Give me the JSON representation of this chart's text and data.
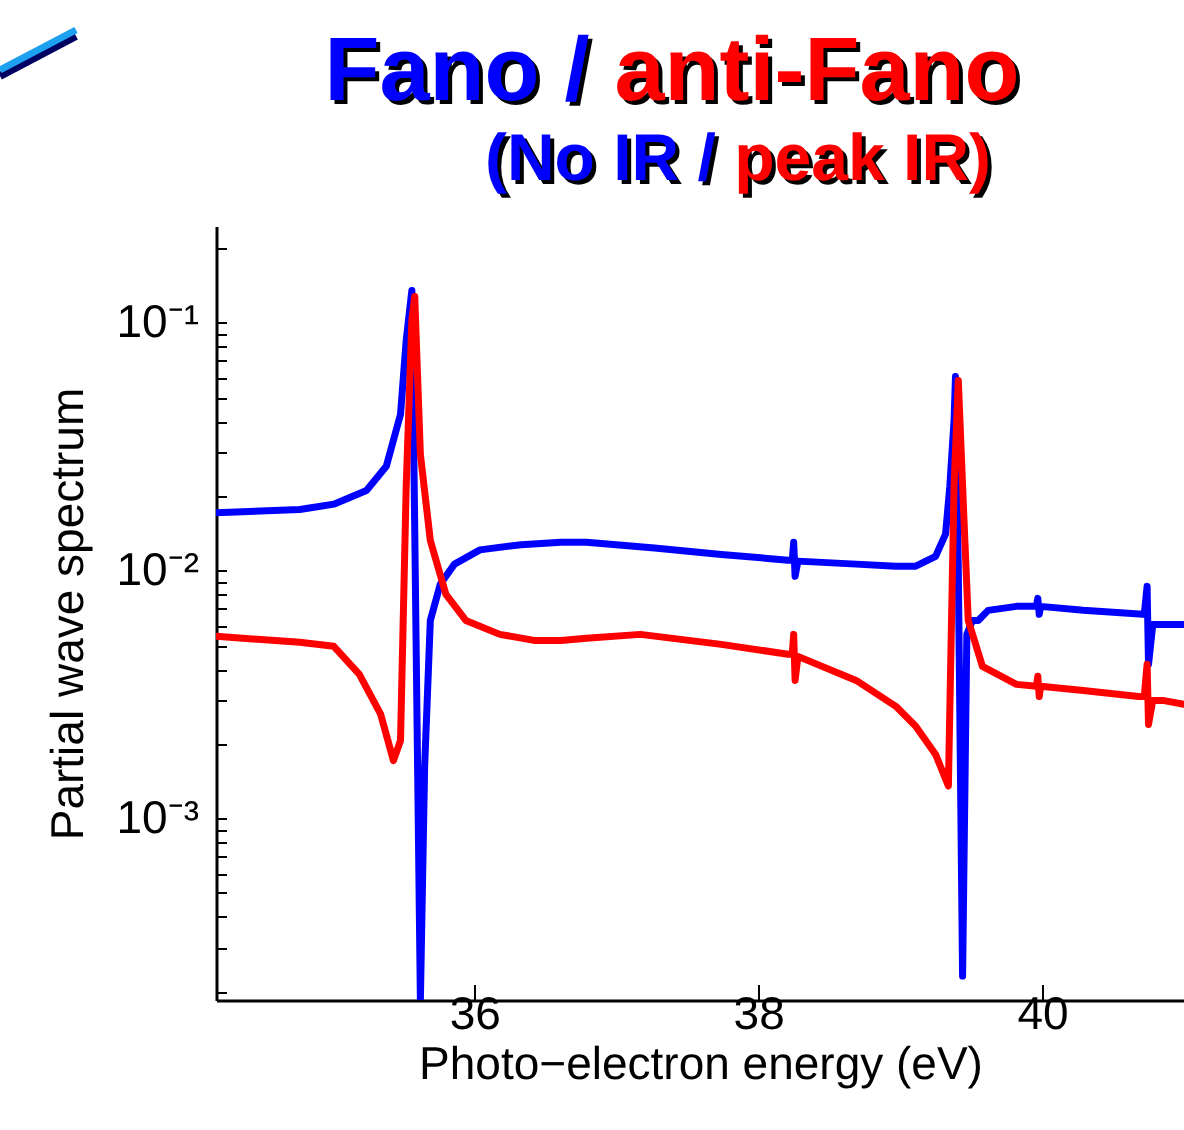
{
  "chart_data": {
    "type": "line",
    "title": "Fano / anti-Fano",
    "subtitle": "(No IR / peak IR)",
    "xlabel": "Photo−electron energy (eV)",
    "ylabel": "Partial wave spectrum",
    "log": "y",
    "grid": false,
    "marker": "none",
    "line_style": "solid",
    "xlim": [
      34.18,
      41.0
    ],
    "xticks": [
      36,
      38,
      40
    ],
    "ylim": [
      0.000185,
      0.245
    ],
    "yticks": [
      {
        "value": 0.0002,
        "label": null
      },
      {
        "value": 0.0003,
        "label": null
      },
      {
        "value": 0.0004,
        "label": null
      },
      {
        "value": 0.0005,
        "label": null
      },
      {
        "value": 0.0006,
        "label": null
      },
      {
        "value": 0.0007,
        "label": null
      },
      {
        "value": 0.0008,
        "label": null
      },
      {
        "value": 0.0009,
        "label": null
      },
      {
        "value": 0.001,
        "label": "10⁻³"
      },
      {
        "value": 0.002,
        "label": null
      },
      {
        "value": 0.003,
        "label": null
      },
      {
        "value": 0.004,
        "label": null
      },
      {
        "value": 0.005,
        "label": null
      },
      {
        "value": 0.006,
        "label": null
      },
      {
        "value": 0.007,
        "label": null
      },
      {
        "value": 0.008,
        "label": null
      },
      {
        "value": 0.009,
        "label": null
      },
      {
        "value": 0.01,
        "label": "10⁻²"
      },
      {
        "value": 0.02,
        "label": null
      },
      {
        "value": 0.03,
        "label": null
      },
      {
        "value": 0.04,
        "label": null
      },
      {
        "value": 0.05,
        "label": null
      },
      {
        "value": 0.06,
        "label": null
      },
      {
        "value": 0.07,
        "label": null
      },
      {
        "value": 0.08,
        "label": null
      },
      {
        "value": 0.09,
        "label": null
      },
      {
        "value": 0.1,
        "label": "10⁻¹"
      },
      {
        "value": 0.2,
        "label": null
      }
    ],
    "series": [
      {
        "color": "#0000ff",
        "x": [
          34.18,
          34.77,
          35.01,
          35.24,
          35.38,
          35.48,
          35.52,
          35.56,
          35.59,
          35.62,
          35.65,
          35.69,
          35.76,
          35.86,
          36.04,
          36.33,
          36.61,
          36.79,
          37.27,
          37.74,
          38.21,
          38.24,
          38.25,
          38.26,
          38.28,
          38.69,
          38.97,
          39.11,
          39.25,
          39.32,
          39.35,
          39.38,
          39.39,
          39.41,
          39.44,
          39.47,
          39.51,
          39.55,
          39.62,
          39.82,
          39.96,
          39.97,
          39.98,
          39.99,
          40.29,
          40.71,
          40.72,
          40.74,
          40.75,
          40.78,
          40.81,
          41.0
        ],
        "values": [
          0.0171,
          0.0176,
          0.0185,
          0.021,
          0.0263,
          0.0426,
          0.0846,
          0.1346,
          0.005,
          0.000185,
          0.00162,
          0.00628,
          0.00879,
          0.0106,
          0.0121,
          0.0127,
          0.013,
          0.013,
          0.0123,
          0.0116,
          0.011,
          0.011,
          0.013,
          0.00946,
          0.0109,
          0.0106,
          0.0104,
          0.0104,
          0.0114,
          0.014,
          0.0218,
          0.0403,
          0.0605,
          0.01,
          0.000231,
          0.00552,
          0.00628,
          0.00628,
          0.0069,
          0.00716,
          0.00716,
          0.00771,
          0.00665,
          0.00716,
          0.0069,
          0.00665,
          0.00665,
          0.00862,
          0.00418,
          0.00605,
          0.00605,
          0.00605
        ]
      },
      {
        "color": "#ff0000",
        "x": [
          34.18,
          34.77,
          35.01,
          35.19,
          35.34,
          35.43,
          35.48,
          35.52,
          35.56,
          35.58,
          35.62,
          35.69,
          35.8,
          35.94,
          36.18,
          36.42,
          36.61,
          36.79,
          37.17,
          37.74,
          38.21,
          38.24,
          38.25,
          38.26,
          38.28,
          38.69,
          38.97,
          39.11,
          39.25,
          39.34,
          39.38,
          39.41,
          39.45,
          39.48,
          39.58,
          39.82,
          39.96,
          39.97,
          39.98,
          39.99,
          40.29,
          40.68,
          40.72,
          40.74,
          40.75,
          40.78,
          40.85,
          41.0
        ],
        "values": [
          0.00542,
          0.00513,
          0.00494,
          0.00381,
          0.00263,
          0.00171,
          0.00206,
          0.0218,
          0.1019,
          0.1273,
          0.0294,
          0.0132,
          0.008,
          0.00628,
          0.00552,
          0.00522,
          0.00522,
          0.00532,
          0.00552,
          0.00503,
          0.00459,
          0.00459,
          0.00552,
          0.0036,
          0.0045,
          0.0036,
          0.00283,
          0.00235,
          0.00181,
          0.00135,
          0.0218,
          0.0583,
          0.0159,
          0.00628,
          0.0041,
          0.00347,
          0.00341,
          0.00374,
          0.0031,
          0.00341,
          0.00328,
          0.0031,
          0.0031,
          0.00418,
          0.00239,
          0.00299,
          0.00299,
          0.00288
        ]
      }
    ]
  }
}
